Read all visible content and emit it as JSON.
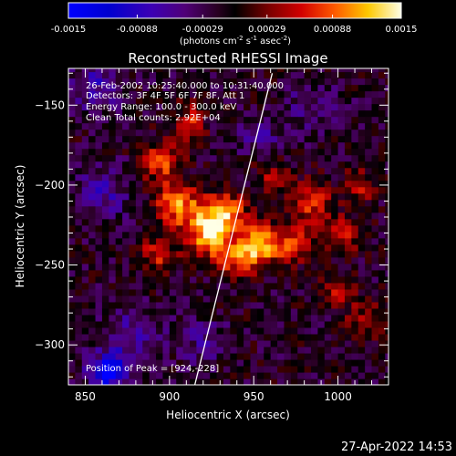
{
  "chart_data": {
    "type": "heatmap",
    "title": "Reconstructed RHESSI Image",
    "xlabel": "Heliocentric X (arcsec)",
    "ylabel": "Heliocentric Y (arcsec)",
    "xlim": [
      840,
      1030
    ],
    "ylim": [
      -325,
      -127
    ],
    "xticks": [
      850,
      900,
      950,
      1000
    ],
    "yticks": [
      -150,
      -200,
      -250,
      -300
    ],
    "colorbar": {
      "min": -0.0015,
      "max": 0.0015,
      "ticks": [
        "-0.0015",
        "-0.00088",
        "-0.00029",
        "0.00029",
        "0.00088",
        "0.0015"
      ],
      "unit_label": "(photons cm",
      "unit_sup1": "-2",
      "unit_mid1": " s",
      "unit_sup2": "-1",
      "unit_mid2": " asec",
      "unit_sup3": "-2",
      "unit_end": ")"
    },
    "info": [
      "26-Feb-2002 10:25:40.000 to 10:31:40.000",
      "Detectors: 3F 4F 5F 6F 7F 8F, Att 1",
      "Energy Range: 100.0 - 300.0 keV",
      "Clean     Total counts: 2.92E+04"
    ],
    "peak_label": "Position of Peak = [924,-228]",
    "peak": [
      924,
      -228
    ],
    "peaks": [
      {
        "x": 924,
        "y": -228,
        "amp": 0.0015,
        "sx": 9,
        "sy": 11
      },
      {
        "x": 953,
        "y": -237,
        "amp": 0.00125,
        "sx": 8,
        "sy": 9
      },
      {
        "x": 905,
        "y": -212,
        "amp": 0.0011,
        "sx": 9,
        "sy": 10
      },
      {
        "x": 935,
        "y": -215,
        "amp": 0.00095,
        "sx": 8,
        "sy": 7
      },
      {
        "x": 940,
        "y": -245,
        "amp": 0.0009,
        "sx": 8,
        "sy": 8
      },
      {
        "x": 895,
        "y": -185,
        "amp": 0.00085,
        "sx": 8,
        "sy": 9
      },
      {
        "x": 912,
        "y": -160,
        "amp": 0.0007,
        "sx": 6,
        "sy": 8
      },
      {
        "x": 893,
        "y": -243,
        "amp": 0.0007,
        "sx": 8,
        "sy": 8
      },
      {
        "x": 985,
        "y": -212,
        "amp": 0.00075,
        "sx": 9,
        "sy": 11
      },
      {
        "x": 972,
        "y": -238,
        "amp": 0.0008,
        "sx": 8,
        "sy": 8
      },
      {
        "x": 1003,
        "y": -232,
        "amp": 0.00065,
        "sx": 7,
        "sy": 8
      },
      {
        "x": 1013,
        "y": -200,
        "amp": 0.0006,
        "sx": 6,
        "sy": 8
      },
      {
        "x": 998,
        "y": -268,
        "amp": 0.0005,
        "sx": 8,
        "sy": 6
      },
      {
        "x": 1015,
        "y": -285,
        "amp": 0.00045,
        "sx": 8,
        "sy": 10
      },
      {
        "x": 960,
        "y": -195,
        "amp": 0.00055,
        "sx": 7,
        "sy": 7
      },
      {
        "x": 855,
        "y": -138,
        "amp": -0.0006,
        "sx": 11,
        "sy": 10
      },
      {
        "x": 862,
        "y": -318,
        "amp": -0.0011,
        "sx": 6,
        "sy": 5
      },
      {
        "x": 868,
        "y": -312,
        "amp": -0.0008,
        "sx": 10,
        "sy": 8
      },
      {
        "x": 860,
        "y": -205,
        "amp": -0.00055,
        "sx": 10,
        "sy": 12
      },
      {
        "x": 880,
        "y": -290,
        "amp": -0.0005,
        "sx": 12,
        "sy": 9
      },
      {
        "x": 955,
        "y": -170,
        "amp": -0.0004,
        "sx": 10,
        "sy": 8
      },
      {
        "x": 920,
        "y": -298,
        "amp": -0.0004,
        "sx": 10,
        "sy": 9
      },
      {
        "x": 985,
        "y": -150,
        "amp": -0.00035,
        "sx": 12,
        "sy": 10
      }
    ],
    "limb_line": [
      [
        915,
        -325
      ],
      [
        961,
        -130
      ]
    ]
  },
  "timestamp": "27-Apr-2022 14:53"
}
